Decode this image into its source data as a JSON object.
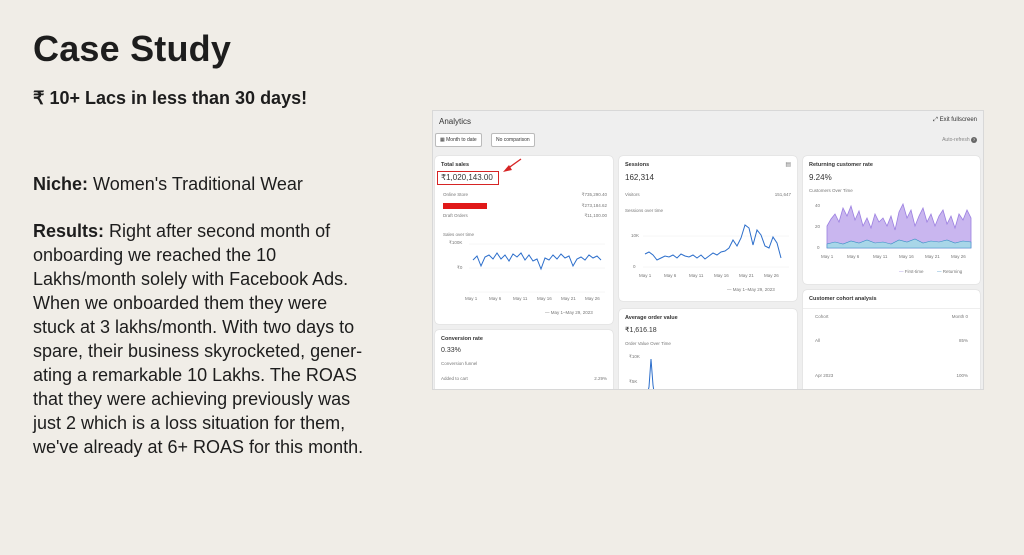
{
  "heading": {
    "title": "Case Study",
    "subtitle": "₹ 10+ Lacs in less than 30 days!"
  },
  "niche": {
    "label": "Niche:",
    "value": "Women's Traditional Wear"
  },
  "results": {
    "label": "Results:",
    "lines": [
      "Right after second month of",
      "onboarding we reached the 10",
      "Lakhs/month solely with Facebook Ads.",
      "When we onboarded them they were",
      "stuck at 3 lakhs/month. With two days to",
      "spare, their business skyrocketed, gener-",
      "ating a remarkable 10 Lakhs. The ROAS",
      "that they were achieving previously was",
      "just 2 which is a loss situation for them,",
      "we've already at 6+ ROAS for this month."
    ]
  },
  "analytics": {
    "header": "Analytics",
    "exit_fullscreen": "Exit fullscreen",
    "auto_refresh": "Auto-refresh",
    "filters": [
      "Month to date",
      "No comparison"
    ],
    "total_sales": {
      "title": "Total sales",
      "value": "₹1,020,143.00",
      "rows": [
        {
          "label": "Online Store",
          "value": "₹735,290.40"
        },
        {
          "label": "",
          "value": "₹273,184.62"
        },
        {
          "label": "Draft Orders",
          "value": "₹11,100.00"
        }
      ],
      "chart_label": "Sales over time",
      "y_ticks": [
        "₹100K",
        "₹0",
        ""
      ],
      "x_ticks": [
        "May 1",
        "May 6",
        "May 11",
        "May 16",
        "May 21",
        "May 26"
      ],
      "legend": "May 1–May 29, 2023"
    },
    "sessions": {
      "title": "Sessions",
      "value": "162,314",
      "row_label": "Visitors",
      "row_value": "151,647",
      "chart_label": "Sessions over time",
      "y_ticks": [
        "10K",
        "0"
      ],
      "x_ticks": [
        "May 1",
        "May 6",
        "May 11",
        "May 16",
        "May 21",
        "May 26"
      ],
      "legend": "May 1–May 29, 2023"
    },
    "returning_customer": {
      "title": "Returning customer rate",
      "value": "9.24%",
      "chart_label": "Customers Over Time",
      "y_ticks": [
        "40",
        "20",
        "0"
      ],
      "x_ticks": [
        "May 1",
        "May 6",
        "May 11",
        "May 16",
        "May 21",
        "May 26"
      ],
      "legend_a": "First-time",
      "legend_b": "Returning"
    },
    "conversion": {
      "title": "Conversion rate",
      "value": "0.33%",
      "sub": "Conversion funnel",
      "row_label": "Added to cart",
      "row_value": "2.29%"
    },
    "aov": {
      "title": "Average order value",
      "value": "₹1,616.18",
      "chart_label": "Order Value Over Time",
      "y_ticks": [
        "₹10K",
        "₹5K"
      ]
    },
    "cohort": {
      "title": "Customer cohort analysis",
      "col1": "Cohort",
      "col2": "Month 0",
      "rows": [
        {
          "label": "All",
          "value": "85%"
        },
        {
          "label": "Apr 2023",
          "value": "100%"
        }
      ]
    }
  }
}
